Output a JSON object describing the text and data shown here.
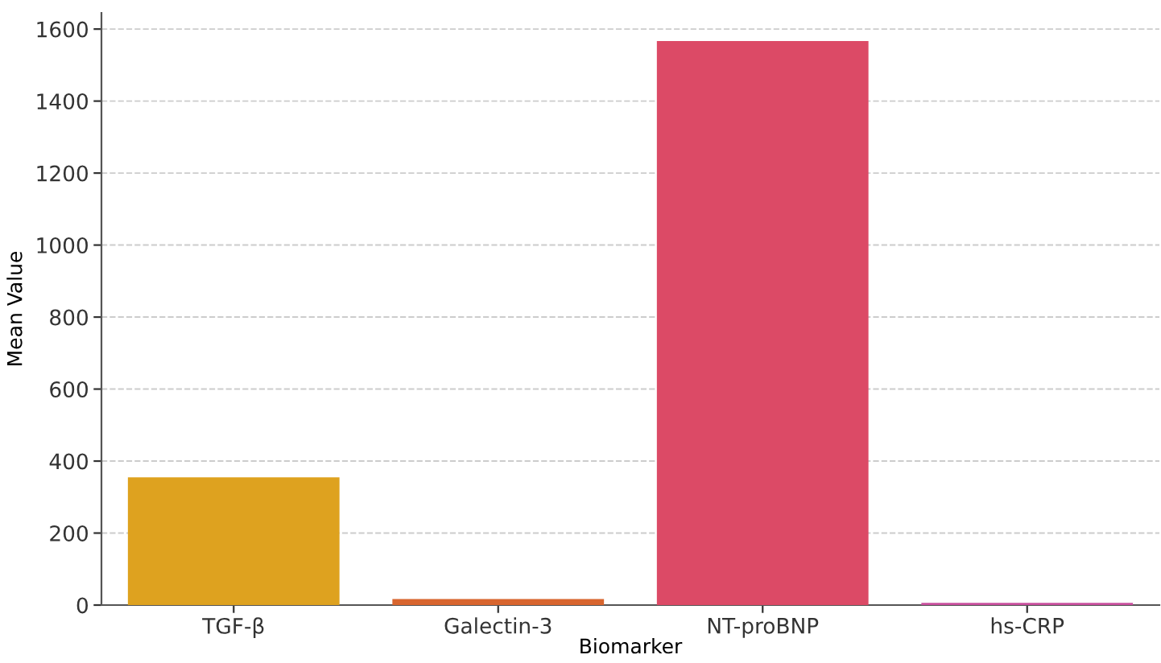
{
  "chart_data": {
    "type": "bar",
    "xlabel": "Biomarker",
    "ylabel": "Mean Value",
    "categories": [
      "TGF-β",
      "Galectin-3",
      "NT-proBNP",
      "hs-CRP"
    ],
    "values": [
      355,
      17,
      1567,
      6
    ],
    "colors": [
      "#dea21f",
      "#d8652e",
      "#dc4a66",
      "#c94f9e"
    ],
    "ylim": [
      0,
      1645
    ],
    "yticks": [
      0,
      200,
      400,
      600,
      800,
      1000,
      1200,
      1400,
      1600
    ],
    "grid": "y"
  }
}
